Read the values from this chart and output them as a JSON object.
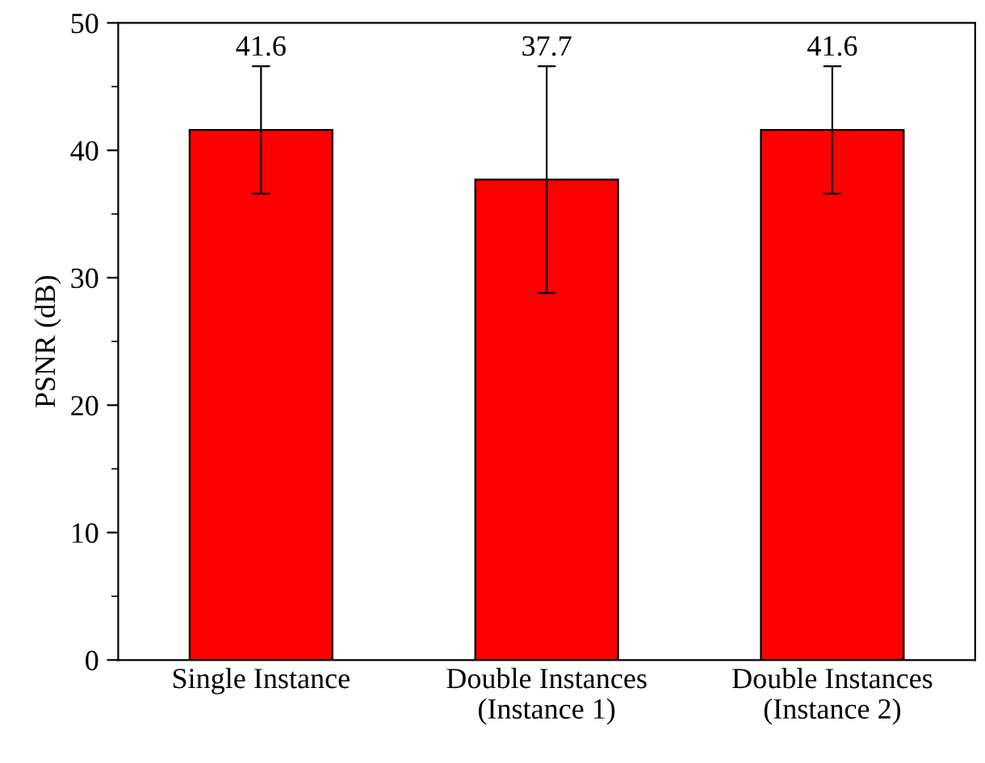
{
  "chart_data": {
    "type": "bar",
    "ylabel": "PSNR (dB)",
    "categories": [
      "Single Instance",
      "Double Instances\n(Instance 1)",
      "Double Instances\n(Instance 2)"
    ],
    "values": [
      41.6,
      37.7,
      41.6
    ],
    "color": "#ff0000",
    "errors": [
      5.0,
      8.9,
      5.0
    ],
    "ylim": [
      0,
      50
    ],
    "yticks": [
      0,
      10,
      20,
      30,
      40,
      50
    ],
    "grid": false,
    "annotations": [
      {
        "text": "41.6",
        "x": "Single Instance",
        "y": 46.6
      },
      {
        "text": "37.7",
        "x": "Double Instances\n(Instance 1)",
        "y": 46.6
      },
      {
        "text": "41.6",
        "x": "Double Instances\n(Instance 2)",
        "y": 46.6
      }
    ]
  }
}
